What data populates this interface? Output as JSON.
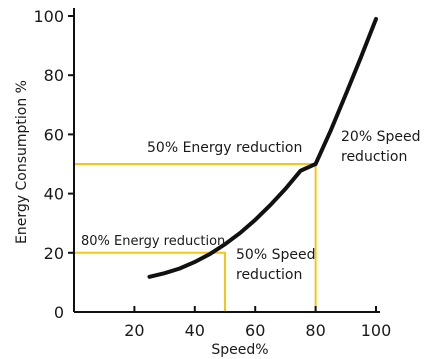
{
  "chart_data": {
    "type": "line",
    "xlabel": "Speed%",
    "ylabel": "Energy Consumption %",
    "xlim": [
      0,
      100
    ],
    "ylim": [
      0,
      100
    ],
    "x_ticks": [
      "20",
      "40",
      "60",
      "80",
      "100"
    ],
    "y_ticks": [
      "0",
      "20",
      "40",
      "60",
      "80",
      "100"
    ],
    "grid": false,
    "series": [
      {
        "color": "#111111",
        "points": [
          [
            25,
            11.9
          ],
          [
            30,
            13.1
          ],
          [
            35,
            14.7
          ],
          [
            40,
            16.9
          ],
          [
            45,
            19.6
          ],
          [
            50,
            22.9
          ],
          [
            55,
            26.7
          ],
          [
            60,
            31.1
          ],
          [
            65,
            36.1
          ],
          [
            70,
            41.6
          ],
          [
            75,
            47.7
          ],
          [
            80,
            50.0
          ],
          [
            85,
            61.3
          ],
          [
            90,
            73.5
          ],
          [
            95,
            86.0
          ],
          [
            100,
            99.0
          ]
        ]
      }
    ],
    "reference_lines": [
      {
        "color": "#f5c518",
        "points": [
          [
            0,
            50
          ],
          [
            80,
            50
          ],
          [
            80,
            0
          ]
        ]
      },
      {
        "color": "#f5c518",
        "points": [
          [
            0,
            20
          ],
          [
            50,
            20
          ],
          [
            50,
            0
          ]
        ]
      }
    ],
    "annotations": [
      {
        "text": "50% Energy reduction"
      },
      {
        "text": "20% Speed"
      },
      {
        "text": "reduction"
      },
      {
        "text": "80% Energy reduction"
      },
      {
        "text": "50% Speed"
      },
      {
        "text": "reduction"
      }
    ]
  }
}
